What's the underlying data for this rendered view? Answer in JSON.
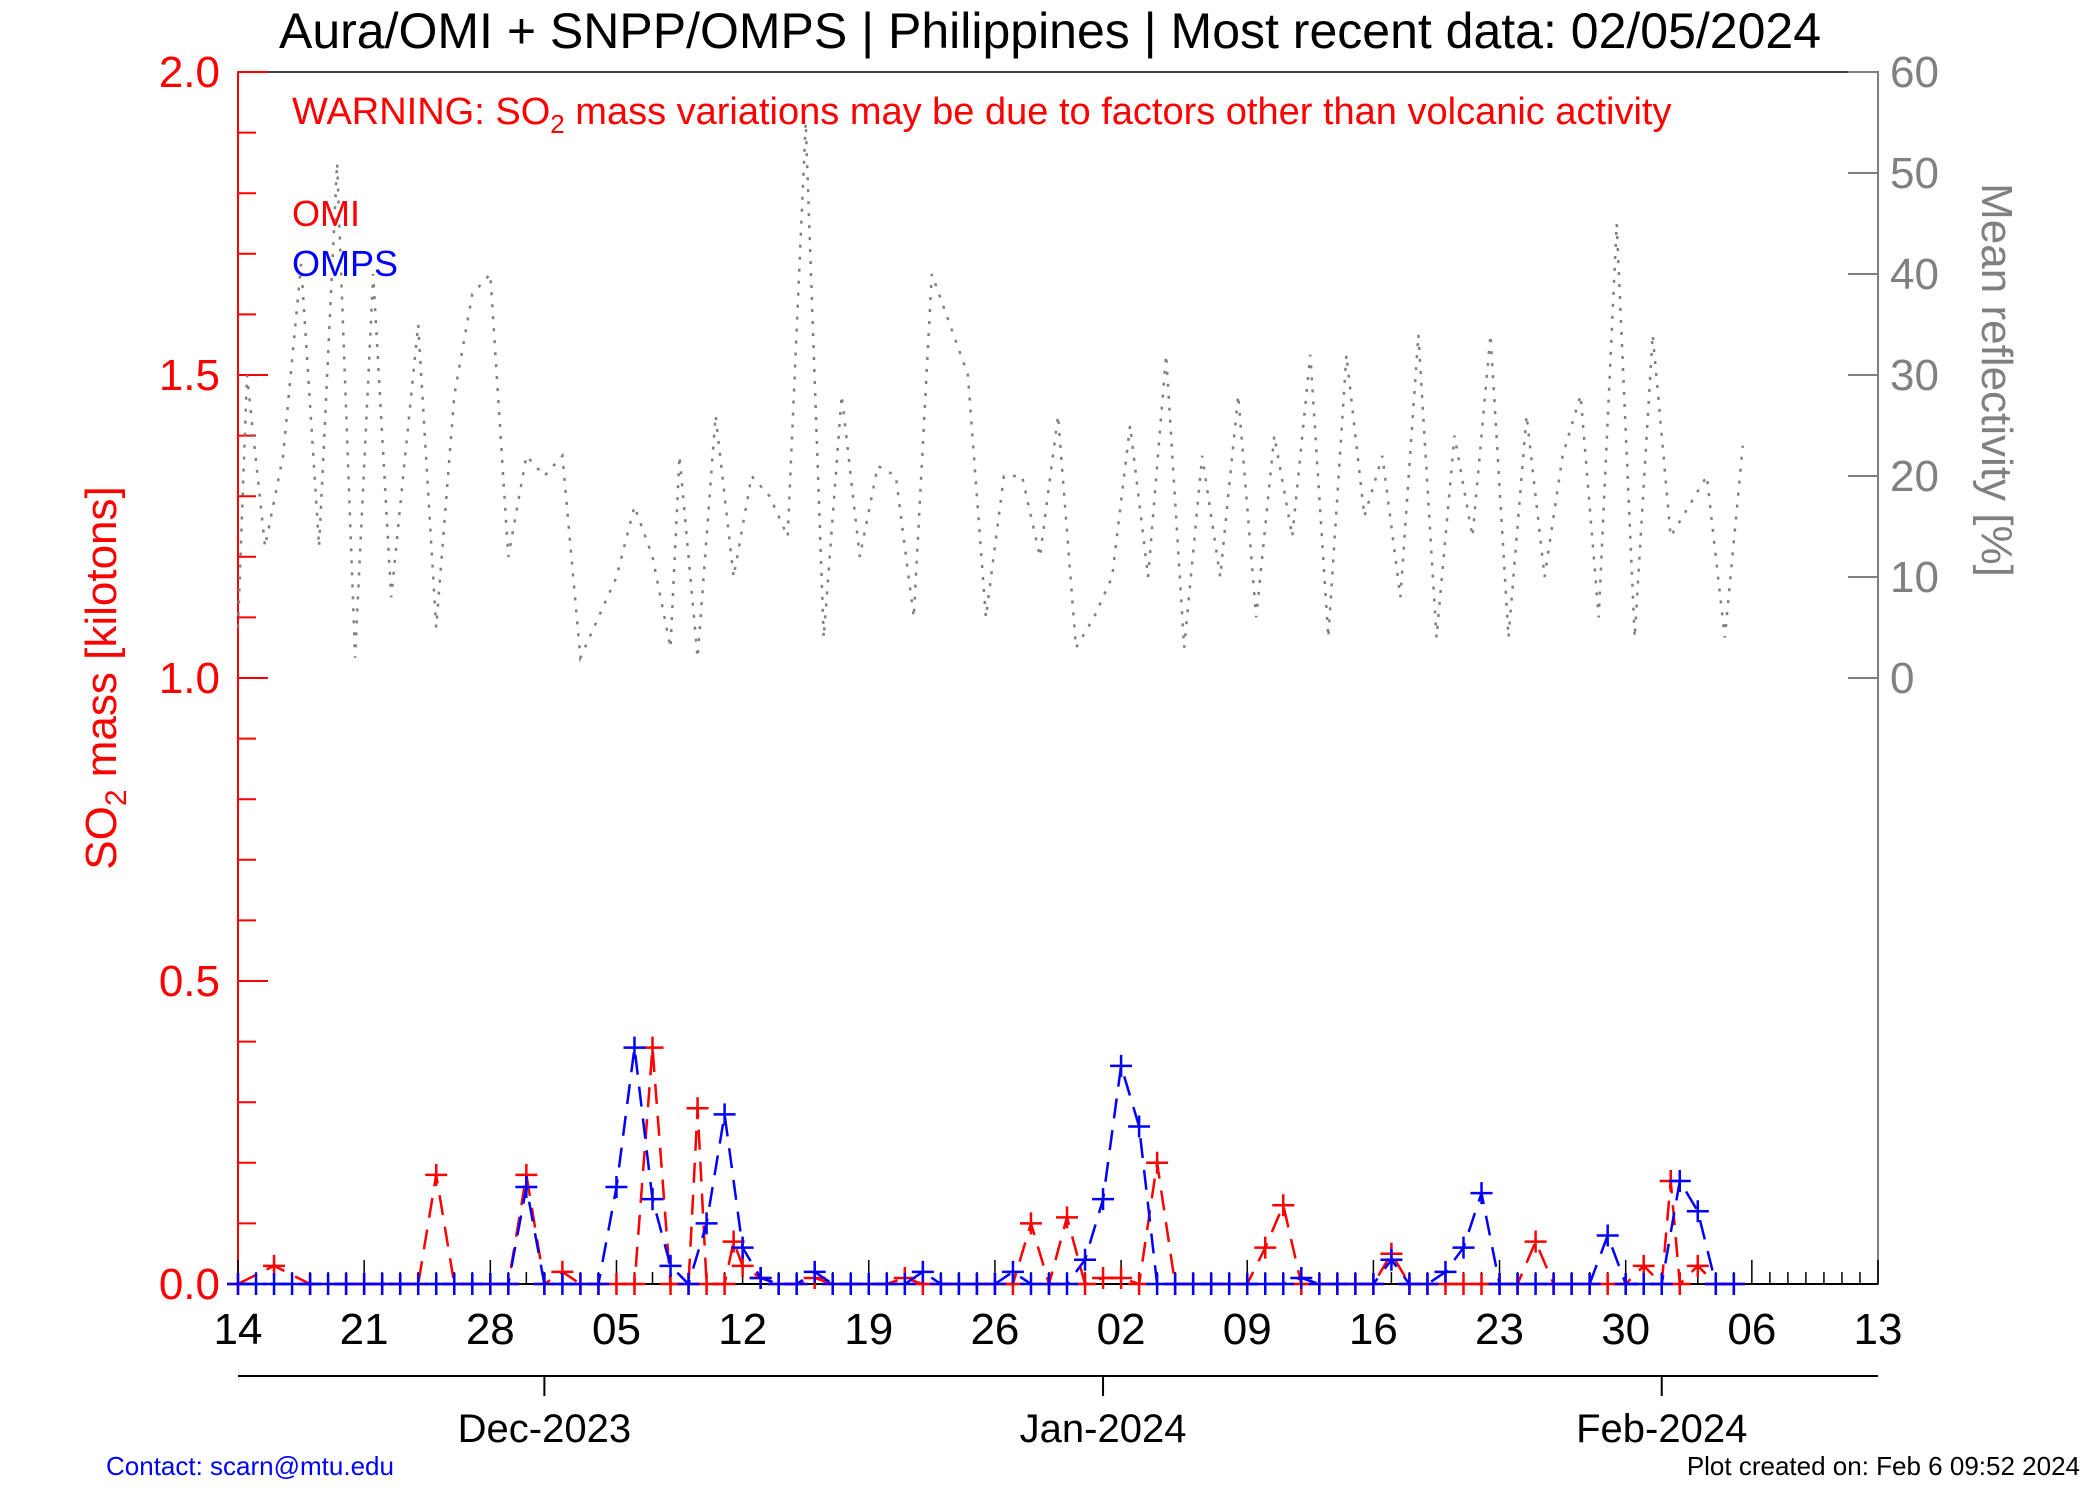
{
  "title": "Aura/OMI + SNPP/OMPS | Philippines | Most recent data: 02/05/2024",
  "warning": {
    "prefix": "WARNING: SO",
    "subscript": "2",
    "suffix": " mass variations may be due to factors other than volcanic activity"
  },
  "left_axis_title": {
    "prefix": "SO",
    "subscript": "2",
    "suffix": " mass [kilotons]"
  },
  "right_axis_title": "Mean reflectivity [%]",
  "footer": {
    "contact": "Contact: scarn@mtu.edu",
    "created": "Plot created on: Feb  6 09:52 2024"
  },
  "colors": {
    "omi": "#ff0000",
    "omps": "#0000ff",
    "reflectivity": "#808080",
    "left_axis": "#ff0000",
    "right_axis": "#808080",
    "contact": "#0000ff"
  },
  "chart_data": {
    "type": "line",
    "x_units": "days since 2023-11-14 (day 0 = Nov 14, 2023)",
    "xlim": [
      0,
      91
    ],
    "ylim": [
      0,
      2.0
    ],
    "y2lim": [
      0,
      60
    ],
    "y2_visible_range": [
      0,
      60
    ],
    "x_ticks": [
      {
        "day": 0,
        "label": "14"
      },
      {
        "day": 7,
        "label": "21"
      },
      {
        "day": 14,
        "label": "28"
      },
      {
        "day": 21,
        "label": "05"
      },
      {
        "day": 28,
        "label": "12"
      },
      {
        "day": 35,
        "label": "19"
      },
      {
        "day": 42,
        "label": "26"
      },
      {
        "day": 49,
        "label": "02"
      },
      {
        "day": 56,
        "label": "09"
      },
      {
        "day": 63,
        "label": "16"
      },
      {
        "day": 70,
        "label": "23"
      },
      {
        "day": 77,
        "label": "30"
      },
      {
        "day": 84,
        "label": "06"
      },
      {
        "day": 91,
        "label": "13"
      }
    ],
    "months": [
      {
        "day": 16.5,
        "label": "Dec-2023"
      },
      {
        "day": 47.5,
        "label": "Jan-2024"
      },
      {
        "day": 78.5,
        "label": "Feb-2024"
      }
    ],
    "y_ticks": [
      {
        "value": 0.0,
        "label": "0.0"
      },
      {
        "value": 0.5,
        "label": "0.5"
      },
      {
        "value": 1.0,
        "label": "1.0"
      },
      {
        "value": 1.5,
        "label": "1.5"
      },
      {
        "value": 2.0,
        "label": "2.0"
      }
    ],
    "y2_ticks": [
      {
        "value": 0,
        "label": "0"
      },
      {
        "value": 10,
        "label": "10"
      },
      {
        "value": 20,
        "label": "20"
      },
      {
        "value": 30,
        "label": "30"
      },
      {
        "value": 40,
        "label": "40"
      },
      {
        "value": 50,
        "label": "50"
      },
      {
        "value": 60,
        "label": "60"
      }
    ],
    "series": [
      {
        "name": "OMI",
        "style": "dashed",
        "marker": "plus",
        "points": [
          [
            0,
            0.0
          ],
          [
            2,
            0.03
          ],
          [
            4,
            0.0
          ],
          [
            6,
            0.0
          ],
          [
            7,
            0.0
          ],
          [
            8,
            0.0
          ],
          [
            9,
            0.0
          ],
          [
            10,
            0.0
          ],
          [
            11,
            0.18
          ],
          [
            12,
            0.0
          ],
          [
            13,
            0.0
          ],
          [
            14,
            0.0
          ],
          [
            15,
            0.0
          ],
          [
            16,
            0.18
          ],
          [
            17,
            0.0
          ],
          [
            18,
            0.02
          ],
          [
            19,
            0.0
          ],
          [
            20,
            0.0
          ],
          [
            21,
            0.0
          ],
          [
            22,
            0.0
          ],
          [
            23,
            0.39
          ],
          [
            24,
            0.0
          ],
          [
            25,
            0.0
          ],
          [
            25.5,
            0.29
          ],
          [
            26,
            0.0
          ],
          [
            27,
            0.0
          ],
          [
            27.5,
            0.07
          ],
          [
            28,
            0.03
          ],
          [
            29,
            0.01
          ],
          [
            30,
            0.0
          ],
          [
            31,
            0.0
          ],
          [
            32,
            0.01
          ],
          [
            33,
            0.0
          ],
          [
            34,
            0.0
          ],
          [
            35,
            0.0
          ],
          [
            36,
            0.0
          ],
          [
            37,
            0.01
          ],
          [
            38,
            0.0
          ],
          [
            39,
            0.0
          ],
          [
            40,
            0.0
          ],
          [
            41,
            0.0
          ],
          [
            42,
            0.0
          ],
          [
            43,
            0.0
          ],
          [
            44,
            0.1
          ],
          [
            45,
            0.0
          ],
          [
            46,
            0.11
          ],
          [
            47,
            0.0
          ],
          [
            48,
            0.01
          ],
          [
            49,
            0.01
          ],
          [
            50,
            0.0
          ],
          [
            51,
            0.2
          ],
          [
            52,
            0.0
          ],
          [
            53,
            0.0
          ],
          [
            54,
            0.0
          ],
          [
            55,
            0.0
          ],
          [
            56,
            0.0
          ],
          [
            57,
            0.06
          ],
          [
            58,
            0.13
          ],
          [
            59,
            0.0
          ],
          [
            60,
            0.0
          ],
          [
            61,
            0.0
          ],
          [
            62,
            0.0
          ],
          [
            63,
            0.0
          ],
          [
            64,
            0.05
          ],
          [
            65,
            0.0
          ],
          [
            66,
            0.0
          ],
          [
            67,
            0.0
          ],
          [
            68,
            0.0
          ],
          [
            69,
            0.0
          ],
          [
            70,
            0.0
          ],
          [
            71,
            0.0
          ],
          [
            72,
            0.07
          ],
          [
            73,
            0.0
          ],
          [
            74,
            0.0
          ],
          [
            75,
            0.0
          ],
          [
            76,
            0.0
          ],
          [
            77,
            0.0
          ],
          [
            78,
            0.03
          ],
          [
            79,
            0.0
          ],
          [
            79.5,
            0.17
          ],
          [
            80,
            0.0
          ],
          [
            81,
            0.03
          ],
          [
            82,
            0.0
          ],
          [
            83,
            0.0
          ]
        ]
      },
      {
        "name": "OMPS",
        "style": "dashed",
        "marker": "plus",
        "points": [
          [
            0,
            0.0
          ],
          [
            1,
            0.0
          ],
          [
            2,
            0.0
          ],
          [
            3,
            0.0
          ],
          [
            4,
            0.0
          ],
          [
            5,
            0.0
          ],
          [
            6,
            0.0
          ],
          [
            7,
            0.0
          ],
          [
            8,
            0.0
          ],
          [
            9,
            0.0
          ],
          [
            10,
            0.0
          ],
          [
            11,
            0.0
          ],
          [
            12,
            0.0
          ],
          [
            13,
            0.0
          ],
          [
            14,
            0.0
          ],
          [
            15,
            0.0
          ],
          [
            16,
            0.16
          ],
          [
            17,
            0.0
          ],
          [
            18,
            0.0
          ],
          [
            19,
            0.0
          ],
          [
            20,
            0.0
          ],
          [
            21,
            0.16
          ],
          [
            22,
            0.39
          ],
          [
            23,
            0.14
          ],
          [
            24,
            0.03
          ],
          [
            25,
            0.0
          ],
          [
            26,
            0.1
          ],
          [
            27,
            0.28
          ],
          [
            28,
            0.06
          ],
          [
            29,
            0.01
          ],
          [
            30,
            0.0
          ],
          [
            31,
            0.0
          ],
          [
            32,
            0.02
          ],
          [
            33,
            0.0
          ],
          [
            34,
            0.0
          ],
          [
            35,
            0.0
          ],
          [
            36,
            0.0
          ],
          [
            37,
            0.0
          ],
          [
            38,
            0.02
          ],
          [
            39,
            0.0
          ],
          [
            40,
            0.0
          ],
          [
            41,
            0.0
          ],
          [
            42,
            0.0
          ],
          [
            43,
            0.02
          ],
          [
            44,
            0.0
          ],
          [
            45,
            0.0
          ],
          [
            46,
            0.0
          ],
          [
            47,
            0.04
          ],
          [
            48,
            0.14
          ],
          [
            49,
            0.36
          ],
          [
            50,
            0.26
          ],
          [
            51,
            0.0
          ],
          [
            52,
            0.0
          ],
          [
            53,
            0.0
          ],
          [
            54,
            0.0
          ],
          [
            55,
            0.0
          ],
          [
            56,
            0.0
          ],
          [
            57,
            0.0
          ],
          [
            58,
            0.0
          ],
          [
            59,
            0.01
          ],
          [
            60,
            0.0
          ],
          [
            61,
            0.0
          ],
          [
            62,
            0.0
          ],
          [
            63,
            0.0
          ],
          [
            64,
            0.04
          ],
          [
            65,
            0.0
          ],
          [
            66,
            0.0
          ],
          [
            67,
            0.02
          ],
          [
            68,
            0.06
          ],
          [
            69,
            0.15
          ],
          [
            70,
            0.0
          ],
          [
            71,
            0.0
          ],
          [
            72,
            0.0
          ],
          [
            73,
            0.0
          ],
          [
            74,
            0.0
          ],
          [
            75,
            0.0
          ],
          [
            76,
            0.08
          ],
          [
            77,
            0.0
          ],
          [
            78,
            0.0
          ],
          [
            79,
            0.0
          ],
          [
            80,
            0.17
          ],
          [
            81,
            0.12
          ],
          [
            82,
            0.0
          ],
          [
            83,
            0.0
          ]
        ]
      },
      {
        "name": "Mean reflectivity",
        "axis": "y2",
        "style": "dotted",
        "points": [
          [
            0,
            5
          ],
          [
            0.5,
            30
          ],
          [
            1.5,
            13
          ],
          [
            2.5,
            22
          ],
          [
            3.5,
            41
          ],
          [
            4.5,
            13
          ],
          [
            5.5,
            51
          ],
          [
            6.5,
            2
          ],
          [
            7.5,
            40
          ],
          [
            8.5,
            8
          ],
          [
            10,
            35
          ],
          [
            11,
            5
          ],
          [
            12,
            28
          ],
          [
            13,
            38
          ],
          [
            14,
            40
          ],
          [
            15,
            12
          ],
          [
            16,
            22
          ],
          [
            17,
            20
          ],
          [
            18,
            22
          ],
          [
            19,
            2
          ],
          [
            20,
            6
          ],
          [
            21,
            10
          ],
          [
            22,
            17
          ],
          [
            23,
            12
          ],
          [
            24,
            3
          ],
          [
            24.5,
            22
          ],
          [
            25.5,
            2
          ],
          [
            26.5,
            26
          ],
          [
            27.5,
            10
          ],
          [
            28.5,
            20
          ],
          [
            29.5,
            18
          ],
          [
            30.5,
            14
          ],
          [
            31.5,
            55
          ],
          [
            32.5,
            4
          ],
          [
            33.5,
            28
          ],
          [
            34.5,
            12
          ],
          [
            35.5,
            21
          ],
          [
            36.5,
            20
          ],
          [
            37.5,
            6
          ],
          [
            38.5,
            40
          ],
          [
            39.5,
            35
          ],
          [
            40.5,
            30
          ],
          [
            41.5,
            6
          ],
          [
            42.5,
            20
          ],
          [
            43.5,
            20
          ],
          [
            44.5,
            12
          ],
          [
            45.5,
            26
          ],
          [
            46.5,
            3
          ],
          [
            47.5,
            6
          ],
          [
            48.5,
            10
          ],
          [
            49.5,
            25
          ],
          [
            50.5,
            10
          ],
          [
            51.5,
            32
          ],
          [
            52.5,
            3
          ],
          [
            53.5,
            22
          ],
          [
            54.5,
            10
          ],
          [
            55.5,
            28
          ],
          [
            56.5,
            6
          ],
          [
            57.5,
            24
          ],
          [
            58.5,
            14
          ],
          [
            59.5,
            32
          ],
          [
            60.5,
            4
          ],
          [
            61.5,
            32
          ],
          [
            62.5,
            16
          ],
          [
            63.5,
            22
          ],
          [
            64.5,
            8
          ],
          [
            65.5,
            34
          ],
          [
            66.5,
            4
          ],
          [
            67.5,
            24
          ],
          [
            68.5,
            14
          ],
          [
            69.5,
            34
          ],
          [
            70.5,
            4
          ],
          [
            71.5,
            26
          ],
          [
            72.5,
            10
          ],
          [
            73.5,
            22
          ],
          [
            74.5,
            28
          ],
          [
            75.5,
            6
          ],
          [
            76.5,
            45
          ],
          [
            77.5,
            4
          ],
          [
            78.5,
            34
          ],
          [
            79.5,
            14
          ],
          [
            80.5,
            17
          ],
          [
            81.5,
            20
          ],
          [
            82.5,
            4
          ],
          [
            83.5,
            23
          ]
        ]
      }
    ]
  }
}
